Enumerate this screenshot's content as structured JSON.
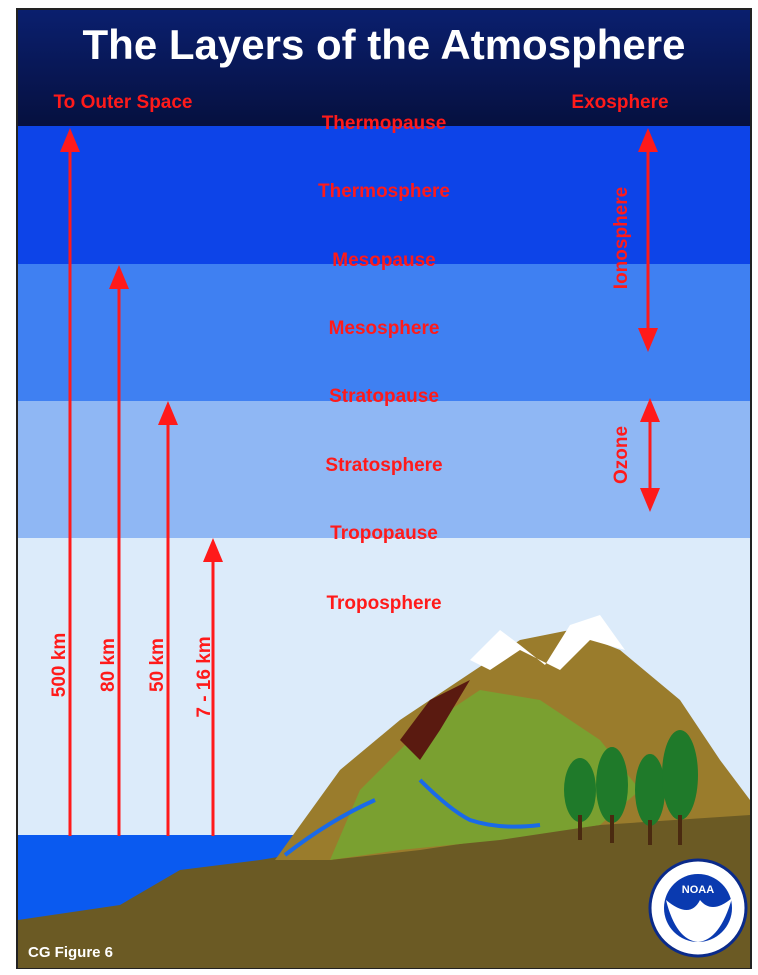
{
  "header": {
    "title": "The Layers of the Atmosphere"
  },
  "top_labels": {
    "left": "To Outer Space",
    "right": "Exosphere"
  },
  "layers": [
    "Thermopause",
    "Thermosphere",
    "Mesopause",
    "Mesosphere",
    "Stratopause",
    "Stratosphere",
    "Tropopause",
    "Troposphere"
  ],
  "altitudes": [
    "500 km",
    "80 km",
    "50 km",
    "7 - 16 km"
  ],
  "regions": [
    "Ionosphere",
    "Ozone"
  ],
  "logo": {
    "text": "NOAA"
  },
  "footer": {
    "caption": "CG Figure 6"
  }
}
